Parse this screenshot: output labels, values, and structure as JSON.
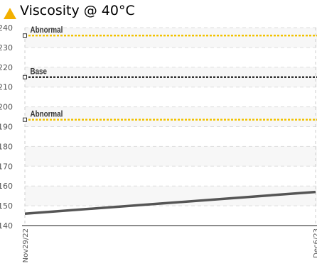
{
  "header": {
    "title": "Viscosity @ 40°C",
    "icon": "warning-triangle-icon",
    "icon_color": "#f2b000"
  },
  "chart_data": {
    "type": "line",
    "title": "Viscosity @ 40°C",
    "xlabel": "",
    "ylabel": "",
    "ylim": [
      140,
      240
    ],
    "yticks": [
      140,
      150,
      160,
      170,
      180,
      190,
      200,
      210,
      220,
      230,
      240
    ],
    "x_categories": [
      "Nov29/22",
      "Dec6/23"
    ],
    "grid": true,
    "series": [
      {
        "x": [
          "Nov29/22",
          "Dec6/23"
        ],
        "values": [
          146,
          157
        ],
        "color": "#555555"
      }
    ],
    "reference_lines": [
      {
        "label": "Abnormal",
        "value": 236,
        "color": "#f2c200"
      },
      {
        "label": "Base",
        "value": 215,
        "color": "#333333"
      },
      {
        "label": "Abnormal",
        "value": 193.5,
        "color": "#f2c200"
      }
    ]
  }
}
